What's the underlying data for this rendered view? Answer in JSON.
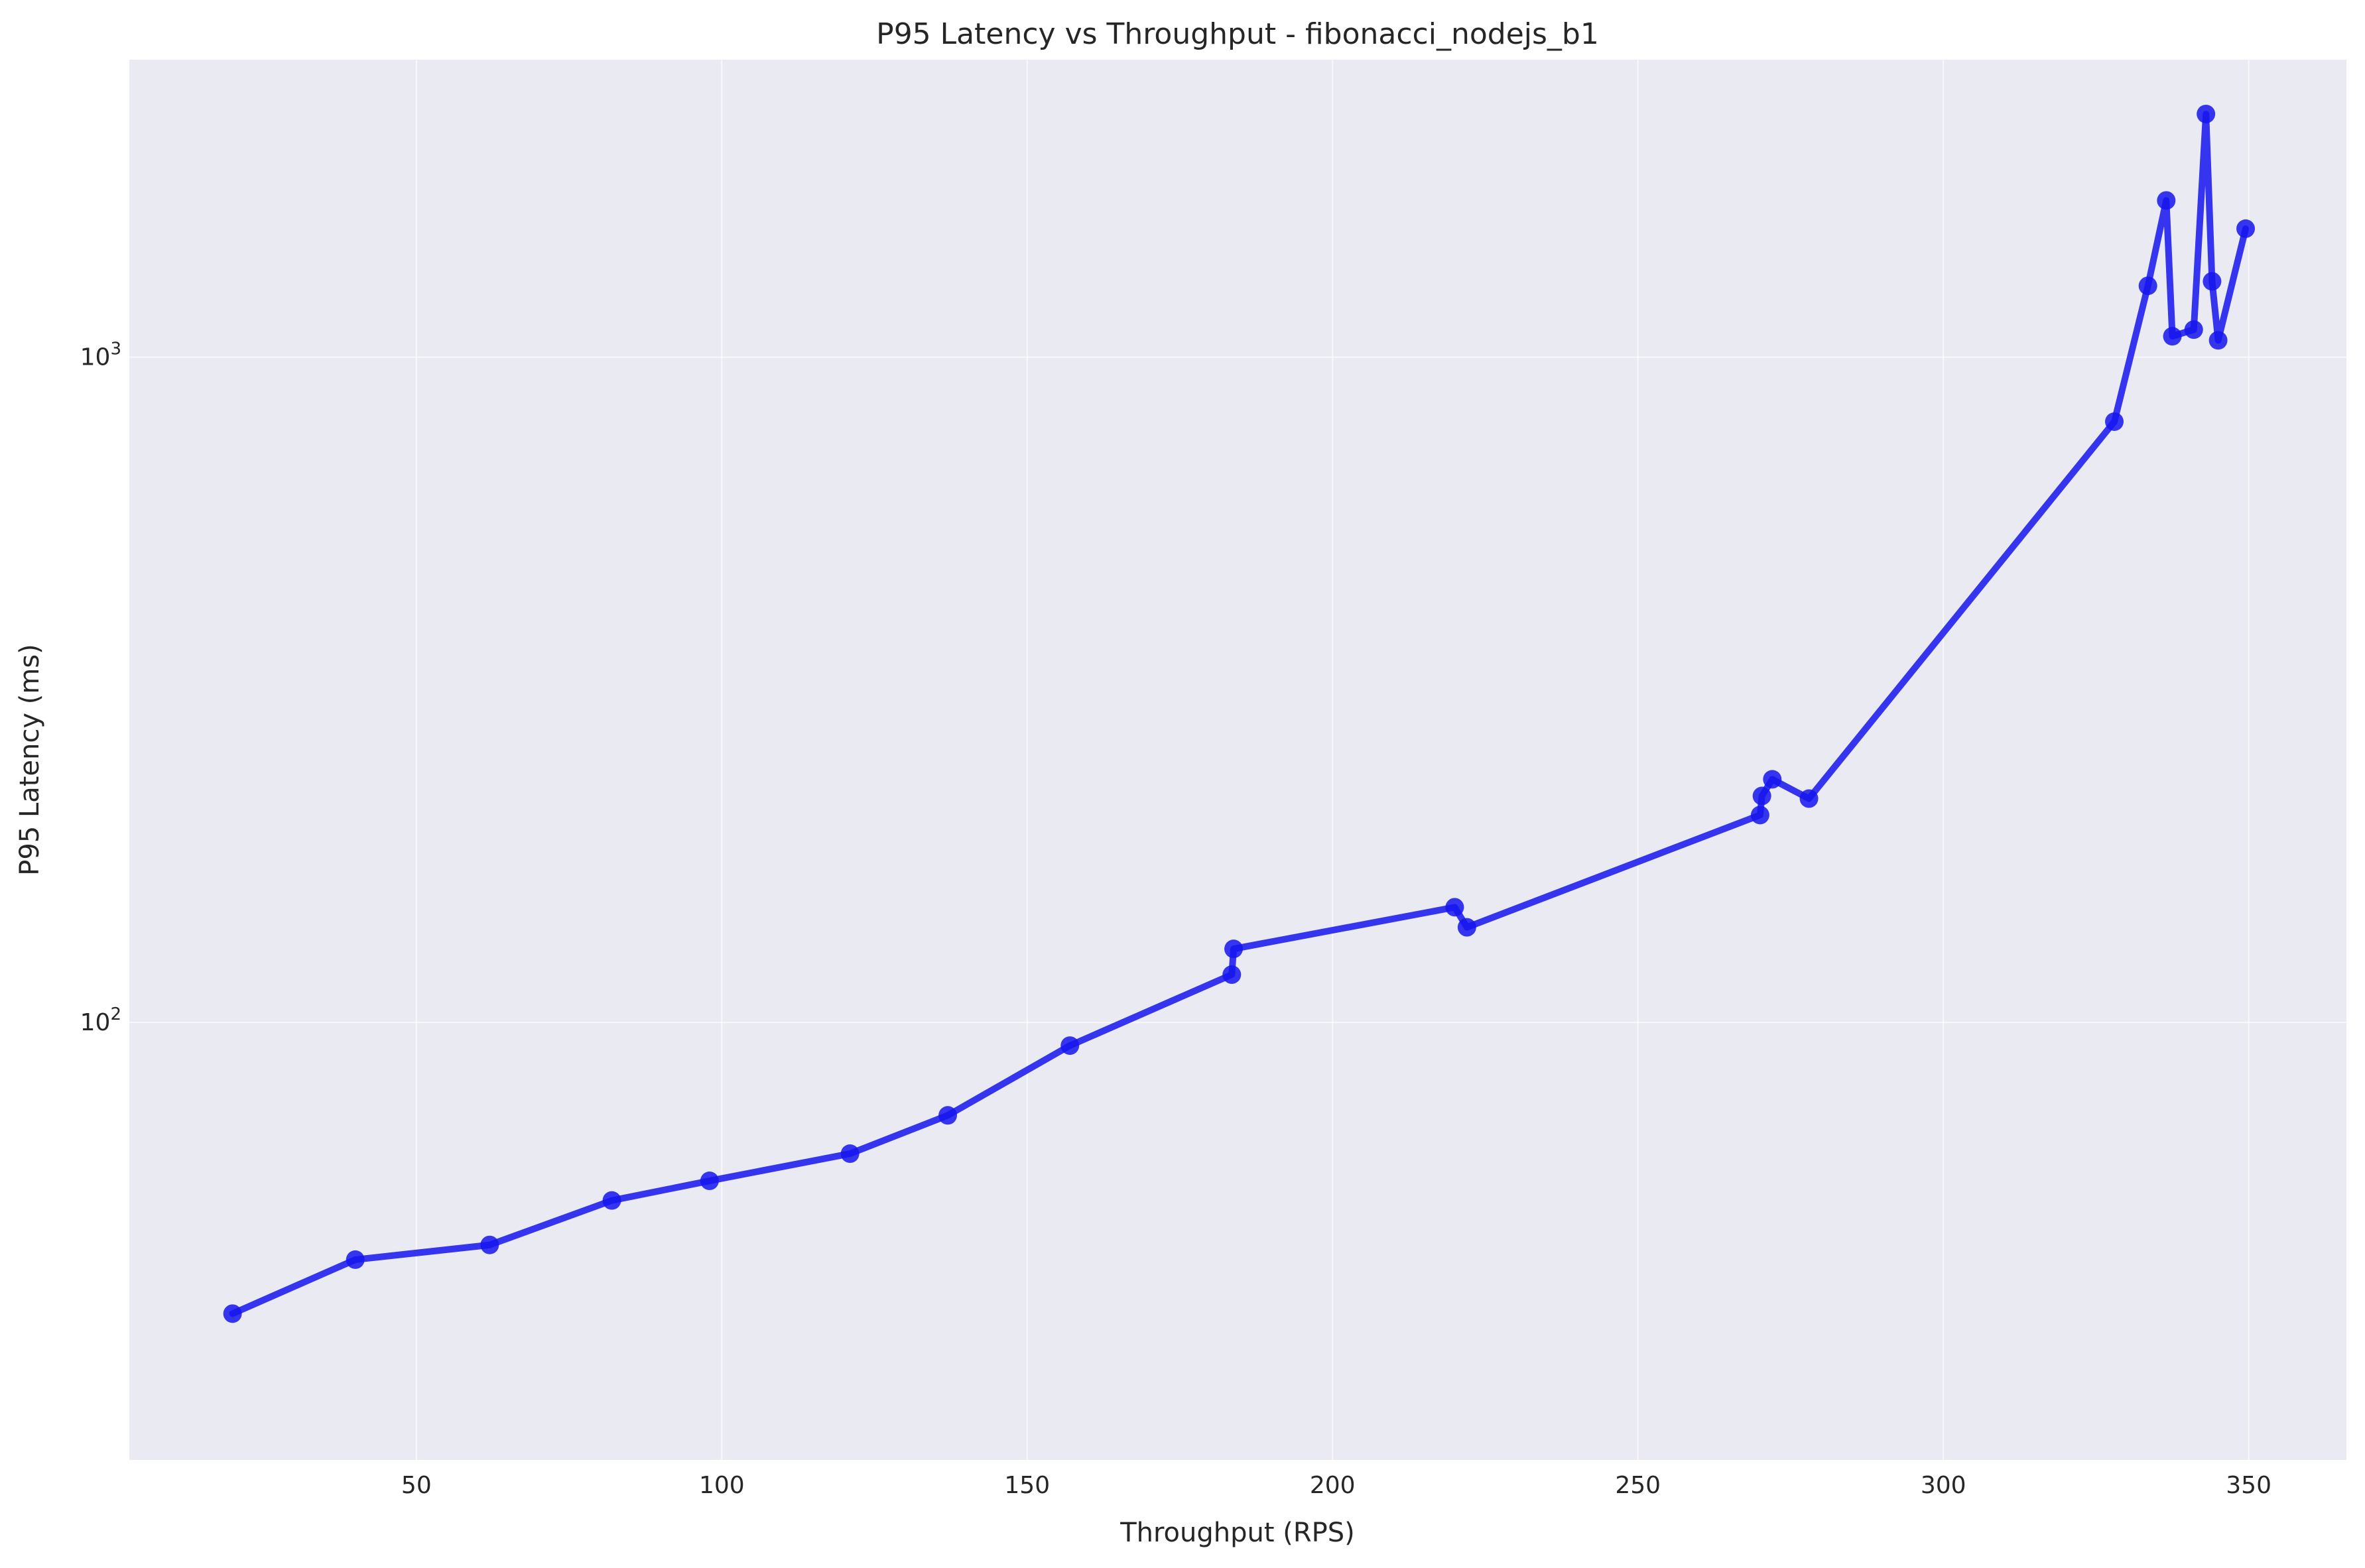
{
  "chart_data": {
    "type": "line",
    "title": "P95 Latency vs Throughput - fibonacci_nodejs_b1",
    "xlabel": "Throughput (RPS)",
    "ylabel": "P95 Latency (ms)",
    "xlim": [
      3,
      366
    ],
    "ylim": [
      22,
      2800
    ],
    "yscale": "log",
    "x_ticks": [
      50,
      100,
      150,
      200,
      250,
      300,
      350
    ],
    "y_ticks": [
      {
        "value": 100,
        "label": "10",
        "exp": "2"
      },
      {
        "value": 1000,
        "label": "10",
        "exp": "3"
      }
    ],
    "grid": true,
    "legend": "none",
    "colors": {
      "background": "#eaeaf2",
      "line": "#1515ee",
      "marker": "#1515ee"
    },
    "series": [
      {
        "x": [
          19.9,
          40,
          62,
          82,
          98,
          121,
          137,
          157,
          183.5,
          183.8,
          220,
          222,
          270,
          270.3,
          272,
          278,
          328,
          333.5,
          336.5,
          337.5,
          341,
          343,
          344,
          345,
          349.5
        ],
        "y": [
          36.5,
          44,
          46.3,
          54,
          57.8,
          63.5,
          72.5,
          92.3,
          118,
          129,
          149,
          139,
          205,
          219,
          232,
          217,
          800,
          1280,
          1720,
          1075,
          1100,
          2320,
          1300,
          1060,
          1560
        ]
      }
    ]
  }
}
